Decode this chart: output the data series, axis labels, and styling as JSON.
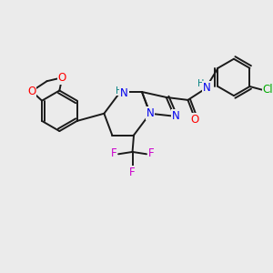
{
  "background_color": "#ebebeb",
  "bond_color": "#1a1a1a",
  "atom_colors": {
    "O": "#ff0000",
    "N": "#0000ee",
    "F": "#cc00cc",
    "Cl": "#00aa00",
    "H_label": "#008080",
    "C": "#1a1a1a"
  },
  "lw": 1.4,
  "font_size": 8.5,
  "font_size_small": 7.0
}
